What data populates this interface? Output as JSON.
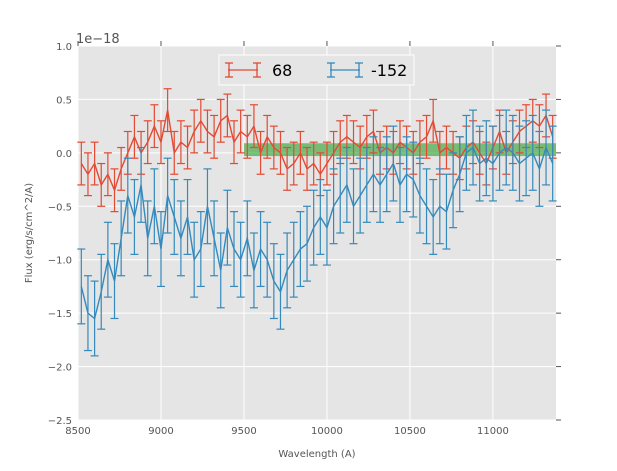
{
  "chart_data": {
    "type": "line",
    "title": "",
    "xlabel": "Wavelength (A)",
    "ylabel": "Flux (erg/s/cm^2/A)",
    "offset_label": "1e−18",
    "xlim": [
      8500,
      11380
    ],
    "ylim": [
      -2.5,
      1.0
    ],
    "xticks": [
      8500,
      9000,
      9500,
      10000,
      10500,
      11000
    ],
    "xtick_labels": [
      "8500",
      "9000",
      "9500",
      "10000",
      "10500",
      "11000"
    ],
    "yticks": [
      1.0,
      0.5,
      0.0,
      -0.5,
      -1.0,
      -1.5,
      -2.0,
      -2.5
    ],
    "ytick_labels": [
      "1.0",
      "0.5",
      "0.0",
      "−0.5",
      "−1.0",
      "−1.5",
      "−2.0",
      "−2.5"
    ],
    "grid": true,
    "legend_position": "top-center",
    "x_start": 8520,
    "x_step": 40,
    "band": {
      "x": [
        9500,
        11380
      ],
      "y": [
        -0.03,
        0.09
      ],
      "color": "#2ca02c"
    },
    "series": [
      {
        "name": "68",
        "color": "#e24a33",
        "yerr": 0.2,
        "values": [
          -0.1,
          -0.2,
          -0.1,
          -0.3,
          -0.2,
          -0.35,
          -0.15,
          0.0,
          0.15,
          0.0,
          0.1,
          0.25,
          0.1,
          0.4,
          0.0,
          0.1,
          0.05,
          0.2,
          0.3,
          0.2,
          0.15,
          0.3,
          0.35,
          0.1,
          0.2,
          0.15,
          0.25,
          0.0,
          0.15,
          0.05,
          0.0,
          -0.15,
          -0.1,
          0.0,
          -0.15,
          -0.1,
          -0.2,
          -0.1,
          0.0,
          0.1,
          0.15,
          0.1,
          0.05,
          0.15,
          0.2,
          0.0,
          0.05,
          0.0,
          0.1,
          0.05,
          0.0,
          0.1,
          0.15,
          0.3,
          0.0,
          0.05,
          0.0,
          -0.05,
          0.05,
          0.1,
          0.0,
          -0.1,
          0.05,
          0.2,
          0.0,
          0.1,
          0.2,
          0.25,
          0.3,
          0.25,
          0.35,
          0.15
        ]
      },
      {
        "name": "-152",
        "color": "#348abd",
        "yerr": 0.35,
        "values": [
          -1.25,
          -1.5,
          -1.55,
          -1.3,
          -1.0,
          -1.2,
          -0.8,
          -0.4,
          -0.6,
          -0.3,
          -0.8,
          -0.5,
          -0.9,
          -0.4,
          -0.6,
          -0.8,
          -0.6,
          -1.0,
          -0.9,
          -0.5,
          -0.8,
          -1.1,
          -0.7,
          -0.9,
          -1.0,
          -0.8,
          -1.1,
          -0.9,
          -1.0,
          -1.2,
          -1.3,
          -1.1,
          -1.0,
          -0.9,
          -0.85,
          -0.7,
          -0.6,
          -0.7,
          -0.5,
          -0.4,
          -0.3,
          -0.5,
          -0.4,
          -0.3,
          -0.2,
          -0.3,
          -0.2,
          -0.1,
          -0.3,
          -0.2,
          -0.25,
          -0.4,
          -0.5,
          -0.6,
          -0.5,
          -0.55,
          -0.35,
          -0.2,
          0.0,
          0.05,
          -0.1,
          -0.05,
          -0.1,
          0.0,
          0.05,
          0.0,
          -0.1,
          -0.05,
          0.0,
          -0.15,
          0.05,
          -0.1
        ]
      }
    ]
  }
}
